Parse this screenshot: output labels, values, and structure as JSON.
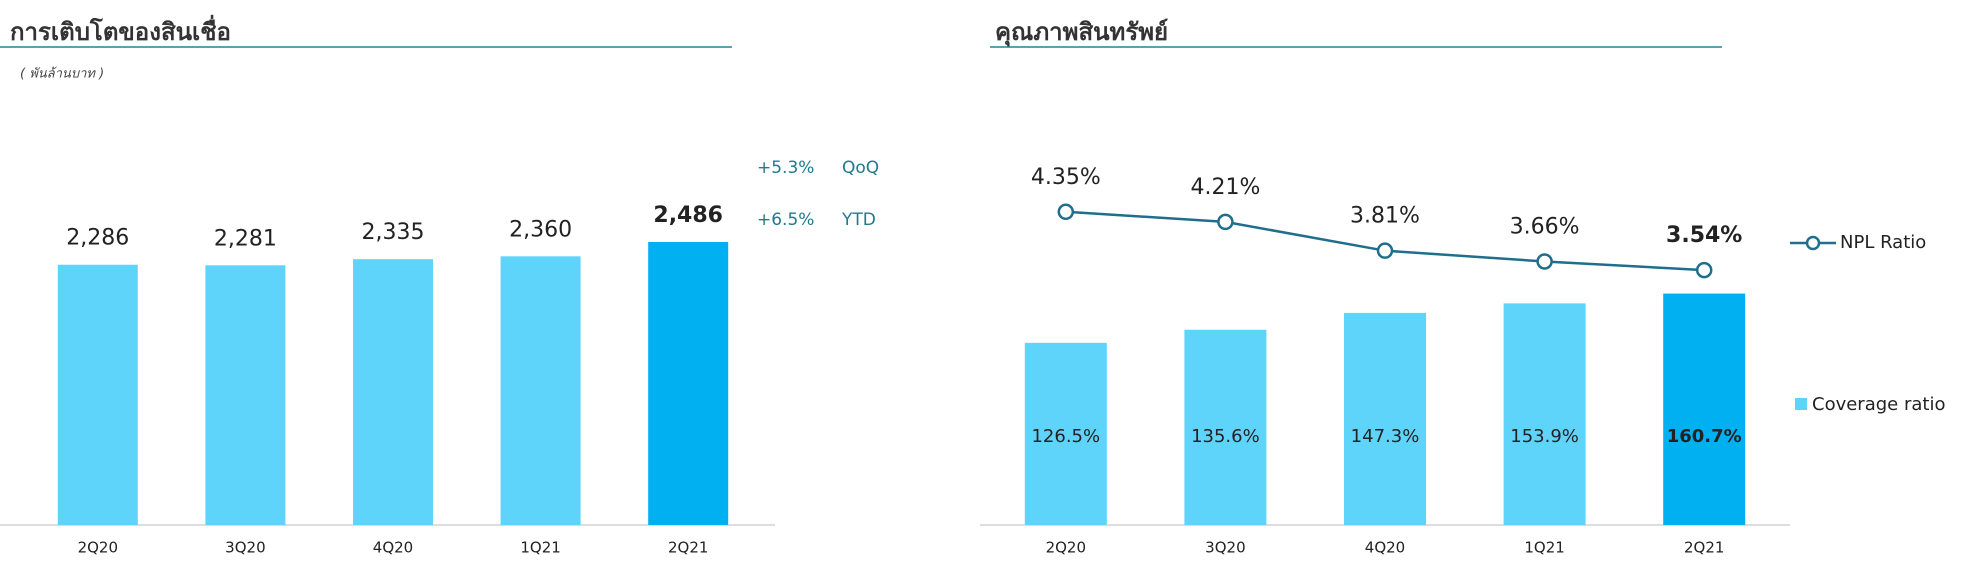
{
  "chart_data": [
    {
      "type": "bar",
      "title": "การเติบโตของสินเชื่อ",
      "subtitle": "( พันล้านบาท )",
      "categories": [
        "2Q20",
        "3Q20",
        "4Q20",
        "1Q21",
        "2Q21"
      ],
      "values": [
        2286,
        2281,
        2335,
        2360,
        2486
      ],
      "value_labels": [
        "2,286",
        "2,281",
        "2,335",
        "2,360",
        "2,486"
      ],
      "colors": [
        "#5fd4fa",
        "#5fd4fa",
        "#5fd4fa",
        "#5fd4fa",
        "#00b0f0"
      ],
      "ylim": [
        0,
        2600
      ],
      "annotations": [
        {
          "change": "+5.3%",
          "label": "QoQ"
        },
        {
          "change": "+6.5%",
          "label": "YTD"
        }
      ]
    },
    {
      "type": "bar_line",
      "title": "คุณภาพสินทรัพย์",
      "categories": [
        "2Q20",
        "3Q20",
        "4Q20",
        "1Q21",
        "2Q21"
      ],
      "series": [
        {
          "name": "Coverage ratio",
          "values": [
            126.5,
            135.6,
            147.3,
            153.9,
            160.7
          ],
          "value_labels": [
            "126.5%",
            "135.6%",
            "147.3%",
            "153.9%",
            "160.7%"
          ],
          "colors": [
            "#5fd4fa",
            "#5fd4fa",
            "#5fd4fa",
            "#5fd4fa",
            "#00b0f0"
          ]
        },
        {
          "name": "NPL Ratio",
          "axis": "y2",
          "color": "#1f6e8c",
          "values": [
            4.35,
            4.21,
            3.81,
            3.66,
            3.54
          ],
          "value_labels": [
            "4.35%",
            "4.21%",
            "3.81%",
            "3.66%",
            "3.54%"
          ]
        }
      ],
      "ylim": [
        0,
        200
      ],
      "y2lim": [
        0,
        4
      ]
    }
  ]
}
